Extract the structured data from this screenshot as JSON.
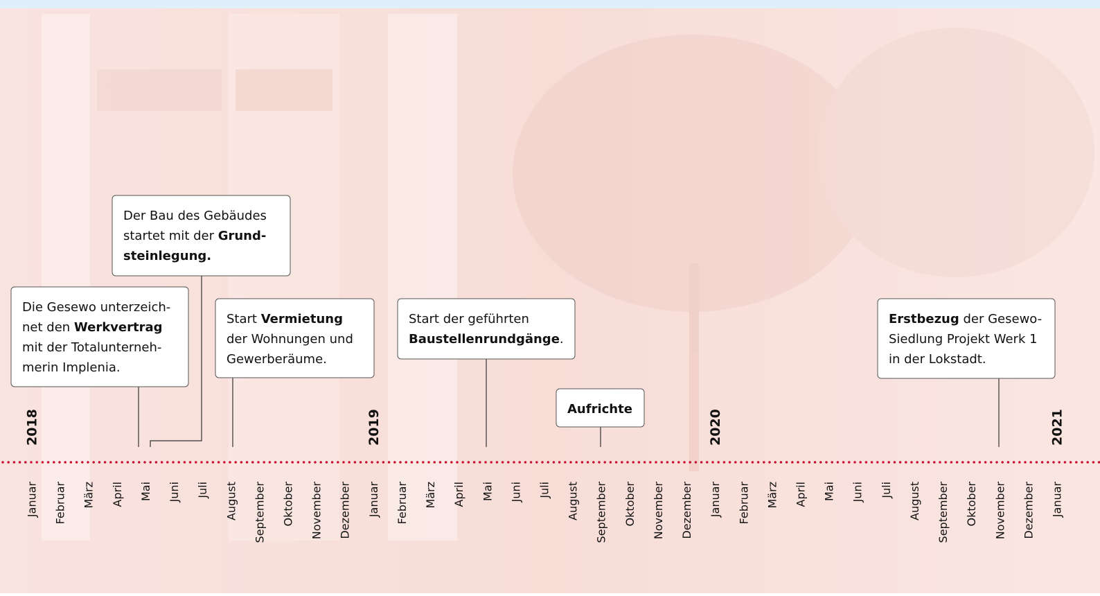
{
  "timeline": {
    "years": [
      "2018",
      "2019",
      "2020",
      "2021"
    ],
    "months": [
      "Januar",
      "Februar",
      "März",
      "April",
      "Mai",
      "Juni",
      "Juli",
      "August",
      "September",
      "Oktober",
      "November",
      "Dezember",
      "Januar",
      "Februar",
      "März",
      "April",
      "Mai",
      "Juni",
      "Juli",
      "August",
      "September",
      "Oktober",
      "November",
      "Dezember",
      "Januar",
      "Februar",
      "März",
      "April",
      "Mai",
      "Juni",
      "Juli",
      "August",
      "September",
      "Oktober",
      "November",
      "Dezember",
      "Januar"
    ],
    "events": [
      {
        "lines": [
          [
            {
              "text": "Die Gesewo unterzeich-"
            }
          ],
          [
            {
              "text": "net den "
            },
            {
              "text": "Werkvertrag",
              "bold": true
            }
          ],
          [
            {
              "text": "mit der Totalunterneh-"
            }
          ],
          [
            {
              "text": "merin Implenia."
            }
          ]
        ]
      },
      {
        "lines": [
          [
            {
              "text": "Der Bau des Gebäudes"
            }
          ],
          [
            {
              "text": "startet mit der "
            },
            {
              "text": "Grund-",
              "bold": true
            }
          ],
          [
            {
              "text": "steinlegung.",
              "bold": true
            }
          ]
        ]
      },
      {
        "lines": [
          [
            {
              "text": "Start "
            },
            {
              "text": "Vermietung",
              "bold": true
            }
          ],
          [
            {
              "text": "der Wohnungen und"
            }
          ],
          [
            {
              "text": "Gewerberäume."
            }
          ]
        ]
      },
      {
        "lines": [
          [
            {
              "text": "Start der geführten"
            }
          ],
          [
            {
              "text": "Baustellenrundgänge",
              "bold": true
            },
            {
              "text": "."
            }
          ]
        ]
      },
      {
        "lines": [
          [
            {
              "text": "Aufrichte",
              "bold": true
            }
          ]
        ]
      },
      {
        "lines": [
          [
            {
              "text": "Erstbezug",
              "bold": true
            },
            {
              "text": " der Gesewo-"
            }
          ],
          [
            {
              "text": "Siedlung Projekt Werk 1"
            }
          ],
          [
            {
              "text": "in der Lokstadt."
            }
          ]
        ]
      }
    ]
  }
}
